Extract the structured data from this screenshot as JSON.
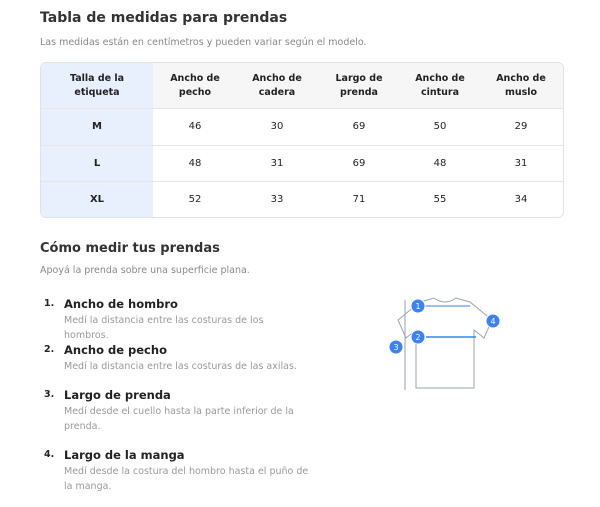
{
  "title": "Tabla de medidas para prendas",
  "subtitle": "Las medidas están en centímetros y pueden variar según el modelo.",
  "table": {
    "headers": [
      "Talla de la etiqueta",
      "Ancho de pecho",
      "Ancho de cadera",
      "Largo de prenda",
      "Ancho de cintura",
      "Ancho de muslo"
    ],
    "rows": [
      [
        "M",
        46,
        30,
        69,
        50,
        29
      ],
      [
        "L",
        48,
        31,
        69,
        48,
        31
      ],
      [
        "XL",
        52,
        33,
        71,
        55,
        34
      ]
    ]
  },
  "guide": {
    "title": "Cómo medir tus prendas",
    "subtitle": "Apoyá la prenda sobre una superficie plana.",
    "steps": [
      {
        "number": "1.",
        "title": "Ancho de hombro",
        "description": "Medí la distancia entre las costuras de los hombros."
      },
      {
        "number": "2.",
        "title": "Ancho de pecho",
        "description": "Medí la distancia entre las costuras de las axilas."
      },
      {
        "number": "3.",
        "title": "Largo de prenda",
        "description": "Medí desde el cuello hasta la parte inferior de la prenda."
      },
      {
        "number": "4.",
        "title": "Largo de la manga",
        "description": "Medí desde la costura del hombro hasta el puño de la manga."
      }
    ]
  },
  "diagram": {
    "markers": [
      "1",
      "2",
      "3",
      "4"
    ]
  }
}
